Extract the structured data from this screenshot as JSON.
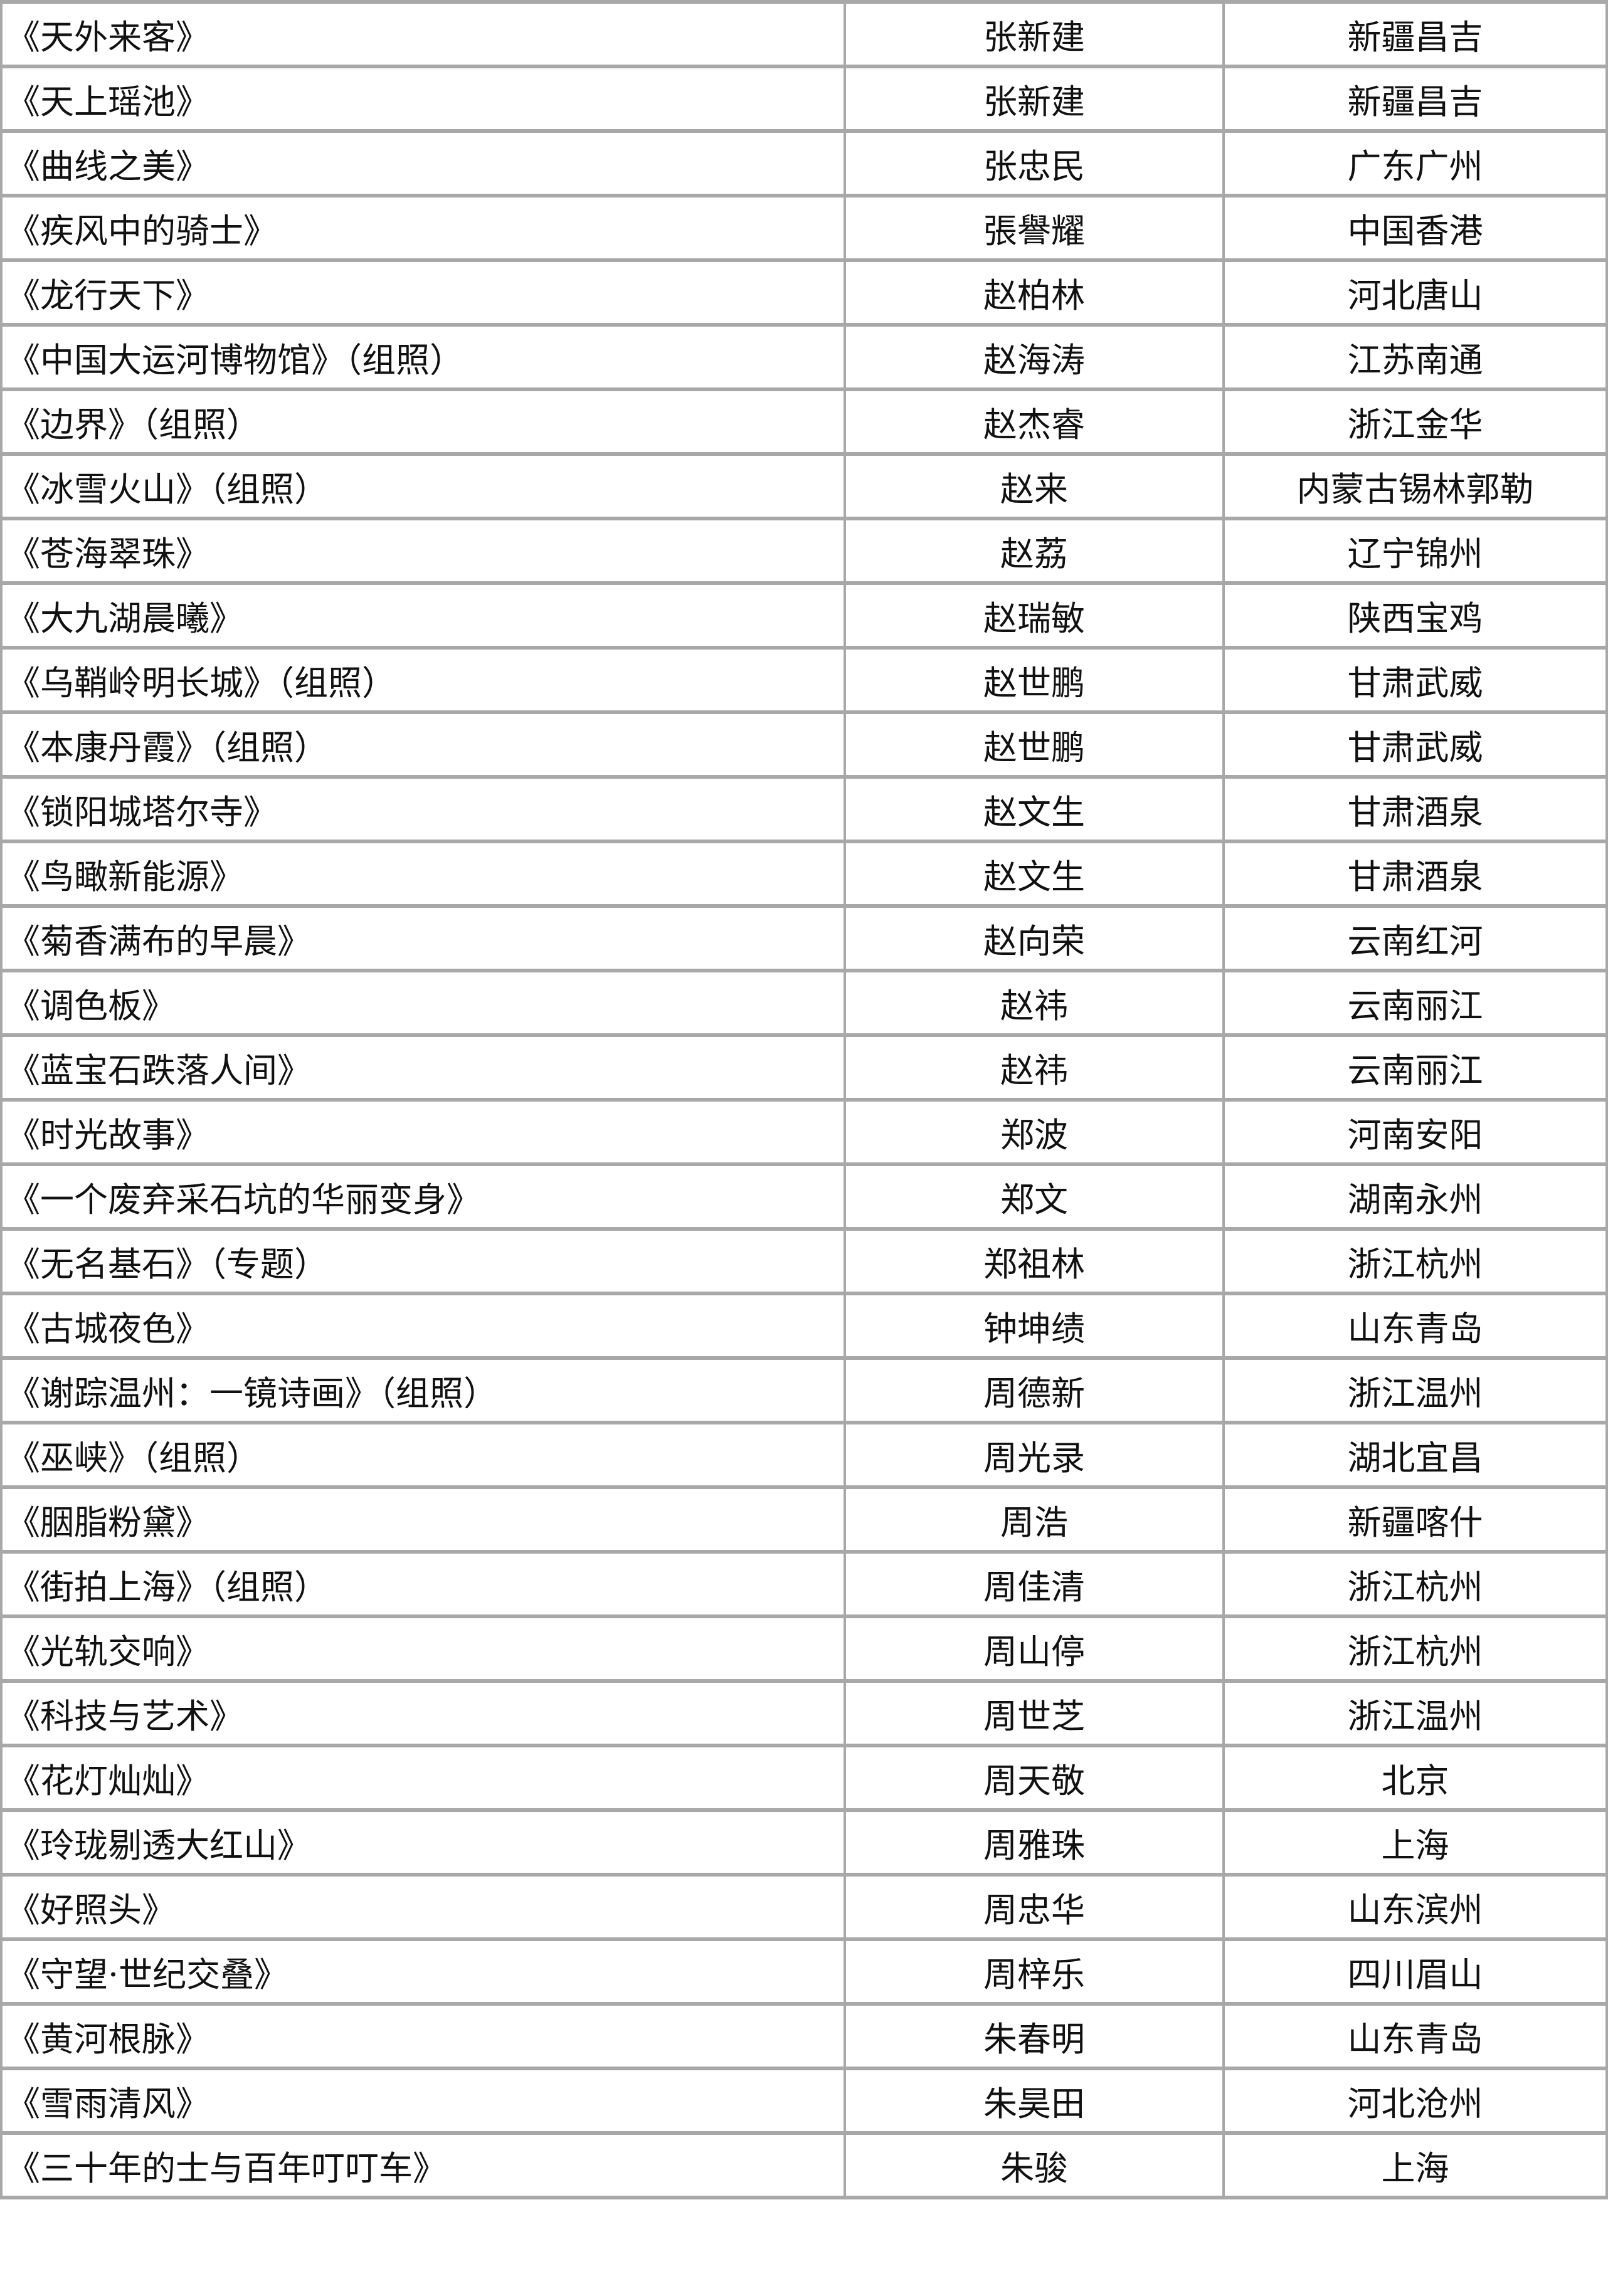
{
  "rows": [
    {
      "title": "《天外来客》",
      "author": "张新建",
      "place": "新疆昌吉"
    },
    {
      "title": "《天上瑶池》",
      "author": "张新建",
      "place": "新疆昌吉"
    },
    {
      "title": "《曲线之美》",
      "author": "张忠民",
      "place": "广东广州"
    },
    {
      "title": "《疾风中的骑士》",
      "author": "張譽耀",
      "place": "中国香港"
    },
    {
      "title": "《龙行天下》",
      "author": "赵柏林",
      "place": "河北唐山"
    },
    {
      "title": "《中国大运河博物馆》（组照）",
      "author": "赵海涛",
      "place": "江苏南通"
    },
    {
      "title": "《边界》（组照）",
      "author": "赵杰睿",
      "place": "浙江金华"
    },
    {
      "title": "《冰雪火山》（组照）",
      "author": "赵来",
      "place": "内蒙古锡林郭勒"
    },
    {
      "title": "《苍海翠珠》",
      "author": "赵荔",
      "place": "辽宁锦州"
    },
    {
      "title": "《大九湖晨曦》",
      "author": "赵瑞敏",
      "place": "陕西宝鸡"
    },
    {
      "title": "《乌鞘岭明长城》（组照）",
      "author": "赵世鹏",
      "place": "甘肃武威"
    },
    {
      "title": "《本康丹霞》（组照）",
      "author": "赵世鹏",
      "place": "甘肃武威"
    },
    {
      "title": "《锁阳城塔尔寺》",
      "author": "赵文生",
      "place": "甘肃酒泉"
    },
    {
      "title": "《鸟瞰新能源》",
      "author": "赵文生",
      "place": "甘肃酒泉"
    },
    {
      "title": "《菊香满布的早晨》",
      "author": "赵向荣",
      "place": "云南红河"
    },
    {
      "title": "《调色板》",
      "author": "赵祎",
      "place": "云南丽江"
    },
    {
      "title": "《蓝宝石跌落人间》",
      "author": "赵祎",
      "place": "云南丽江"
    },
    {
      "title": "《时光故事》",
      "author": "郑波",
      "place": "河南安阳"
    },
    {
      "title": "《一个废弃采石坑的华丽变身》",
      "author": "郑文",
      "place": "湖南永州"
    },
    {
      "title": "《无名基石》（专题）",
      "author": "郑祖林",
      "place": "浙江杭州"
    },
    {
      "title": "《古城夜色》",
      "author": "钟坤绩",
      "place": "山东青岛"
    },
    {
      "title": "《谢踪温州：一镜诗画》（组照）",
      "author": "周德新",
      "place": "浙江温州"
    },
    {
      "title": "《巫峡》（组照）",
      "author": "周光录",
      "place": "湖北宜昌"
    },
    {
      "title": "《胭脂粉黛》",
      "author": "周浩",
      "place": "新疆喀什"
    },
    {
      "title": "《街拍上海》（组照）",
      "author": "周佳清",
      "place": "浙江杭州"
    },
    {
      "title": "《光轨交响》",
      "author": "周山停",
      "place": "浙江杭州"
    },
    {
      "title": "《科技与艺术》",
      "author": "周世芝",
      "place": "浙江温州"
    },
    {
      "title": "《花灯灿灿》",
      "author": "周天敬",
      "place": "北京"
    },
    {
      "title": "《玲珑剔透大红山》",
      "author": "周雅珠",
      "place": "上海"
    },
    {
      "title": "《好照头》",
      "author": "周忠华",
      "place": "山东滨州"
    },
    {
      "title": "《守望·世纪交叠》",
      "author": "周梓乐",
      "place": "四川眉山"
    },
    {
      "title": "《黄河根脉》",
      "author": "朱春明",
      "place": "山东青岛"
    },
    {
      "title": "《雪雨清风》",
      "author": "朱昊田",
      "place": "河北沧州"
    },
    {
      "title": "《三十年的士与百年叮叮车》",
      "author": "朱骏",
      "place": "上海"
    }
  ]
}
